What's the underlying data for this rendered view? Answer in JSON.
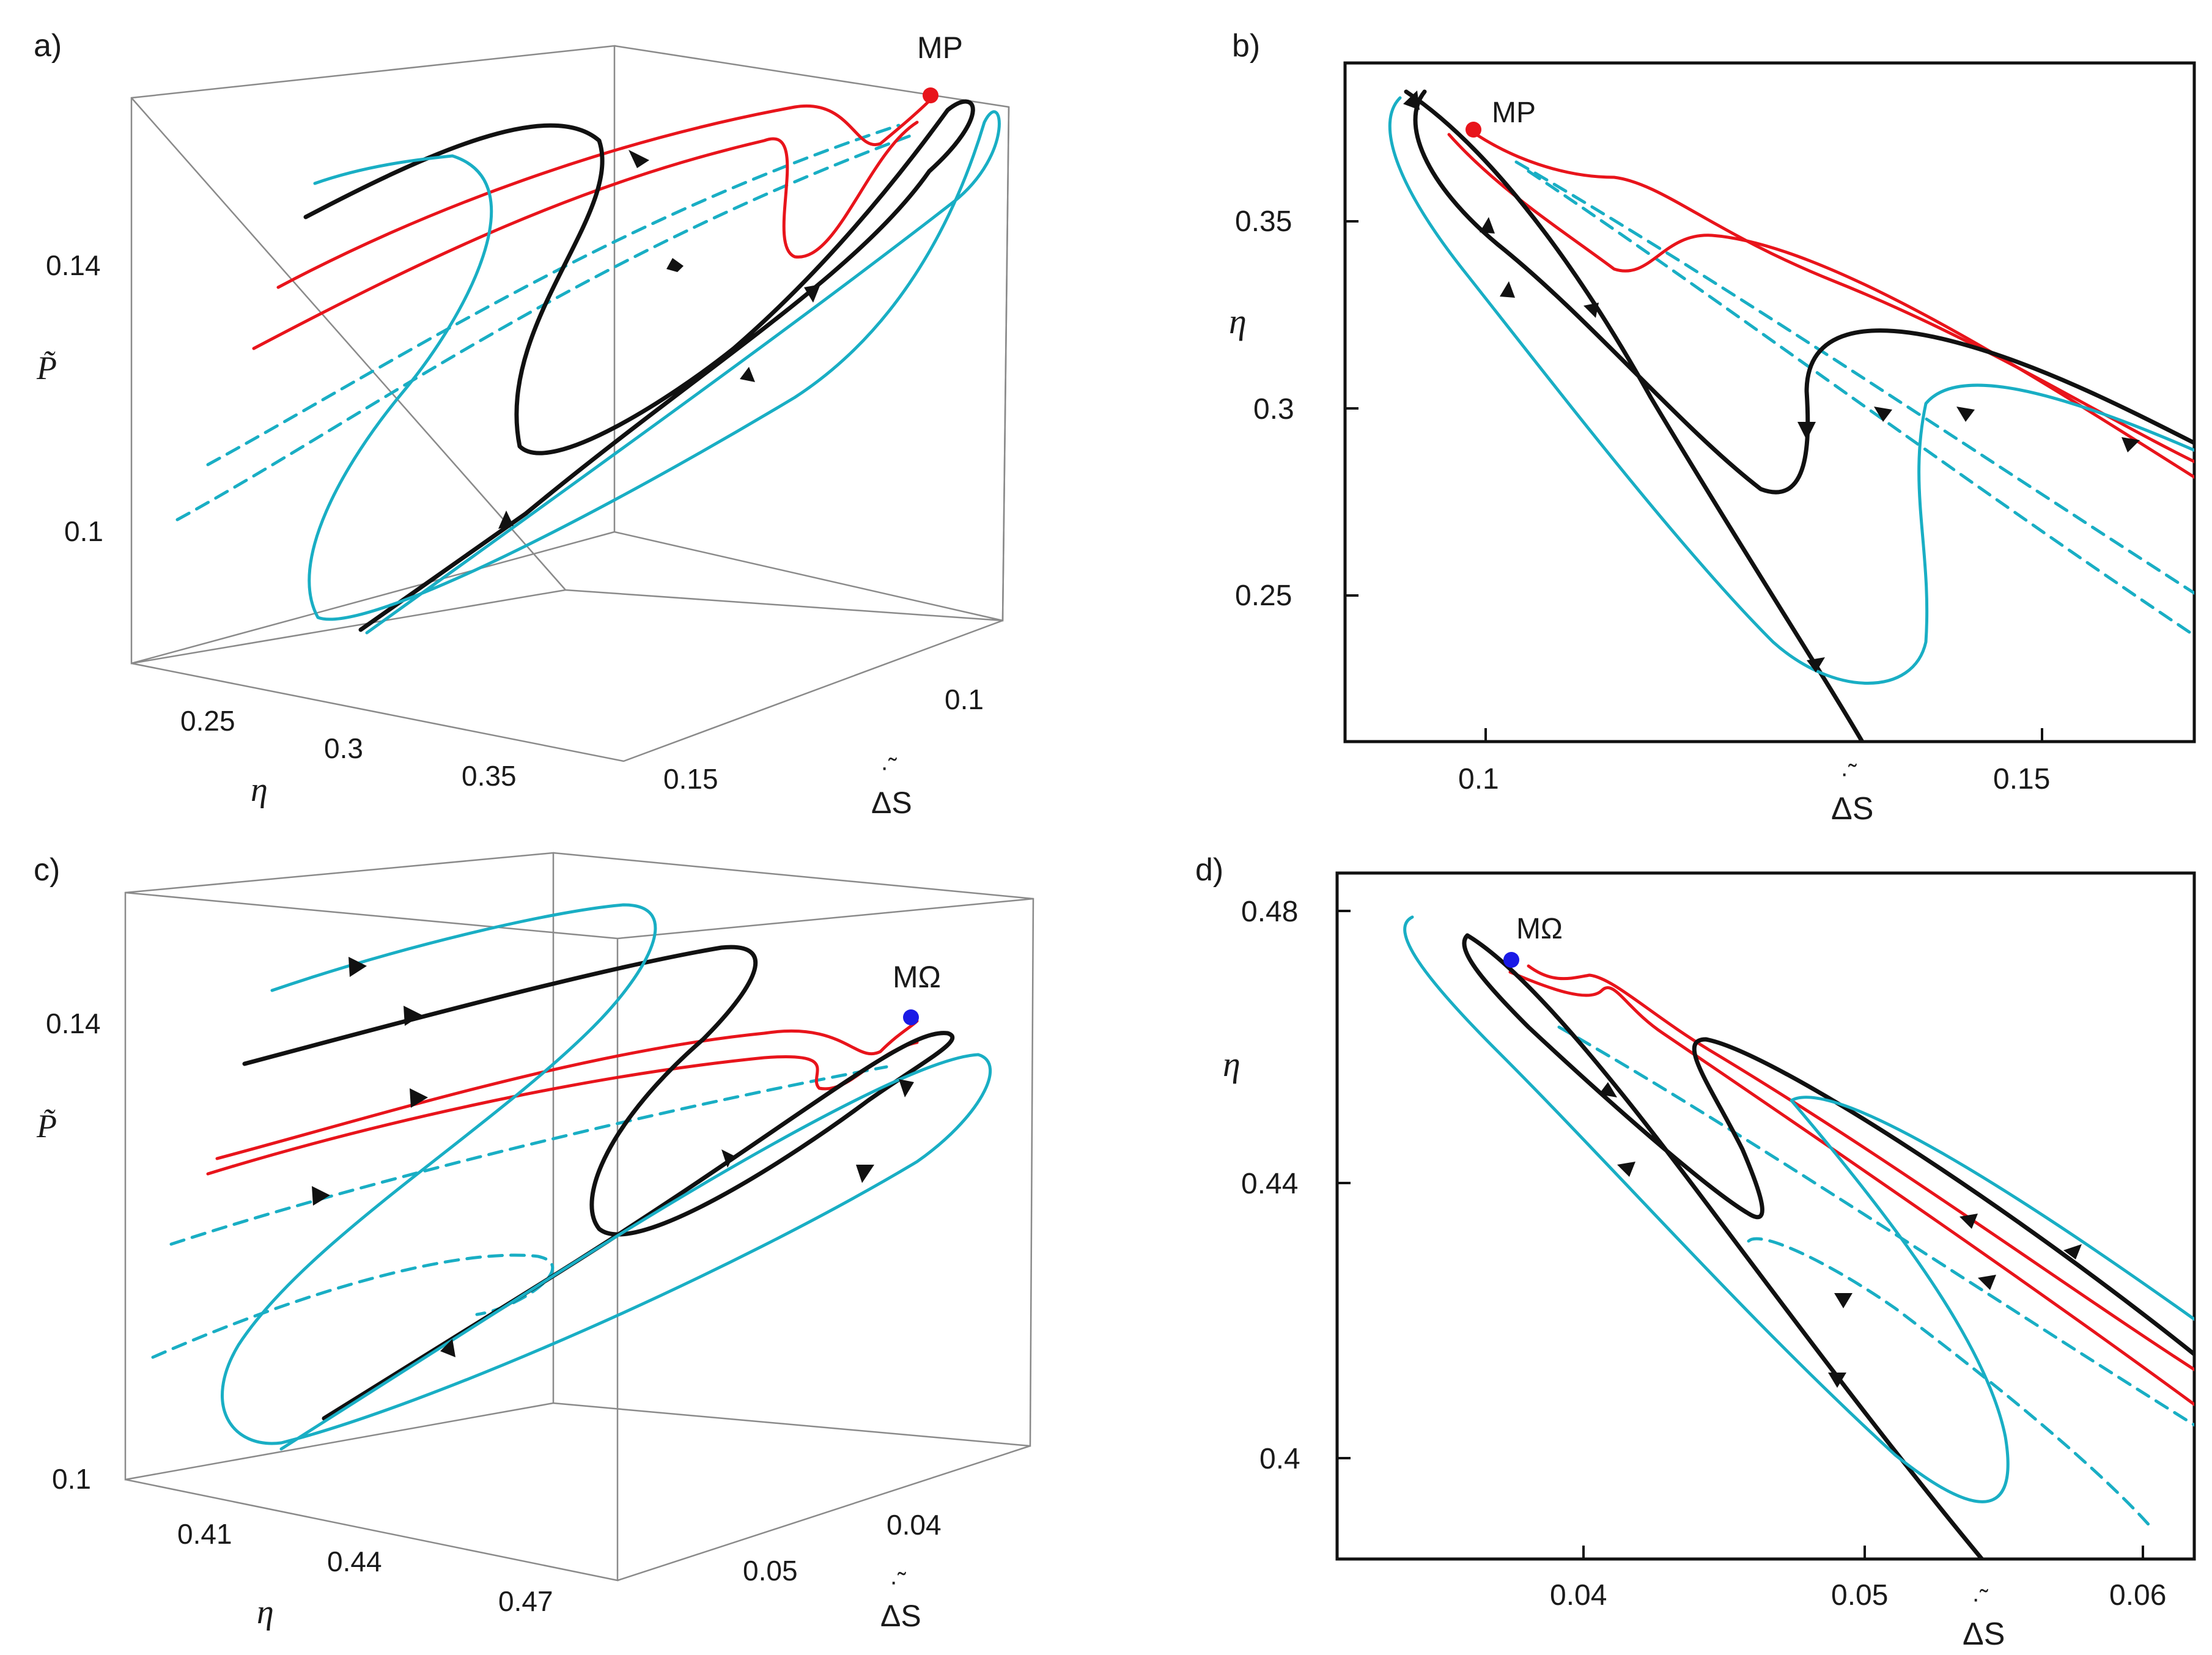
{
  "colors": {
    "black": "#111111",
    "red": "#e8141b",
    "cyan": "#19aec4",
    "blue": "#1a1ae6",
    "box": "#8a8a8a"
  },
  "panels": {
    "a": {
      "label": "a)",
      "point_label": "MP",
      "p_label": "P̃",
      "p_ticks": [
        "0.14",
        "0.1"
      ],
      "eta_label": "η",
      "eta_ticks": [
        "0.25",
        "0.3",
        "0.35"
      ],
      "s_label": "ΔS",
      "s_ticks": [
        "0.15",
        "0.1"
      ]
    },
    "b": {
      "label": "b)",
      "point_label": "MP",
      "y_label": "η",
      "y_ticks": [
        "0.35",
        "0.3",
        "0.25"
      ],
      "x_label": "ΔS",
      "x_ticks": [
        "0.1",
        "0.15"
      ]
    },
    "c": {
      "label": "c)",
      "point_label": "MΩ",
      "p_label": "P̃",
      "p_ticks": [
        "0.14",
        "0.1"
      ],
      "eta_label": "η",
      "eta_ticks": [
        "0.41",
        "0.44",
        "0.47"
      ],
      "s_label": "ΔS",
      "s_ticks": [
        "0.05",
        "0.04"
      ]
    },
    "d": {
      "label": "d)",
      "point_label": "MΩ",
      "y_label": "η",
      "y_ticks": [
        "0.48",
        "0.44",
        "0.4"
      ],
      "x_label": "ΔS",
      "x_ticks": [
        "0.04",
        "0.05",
        "0.06"
      ]
    }
  }
}
